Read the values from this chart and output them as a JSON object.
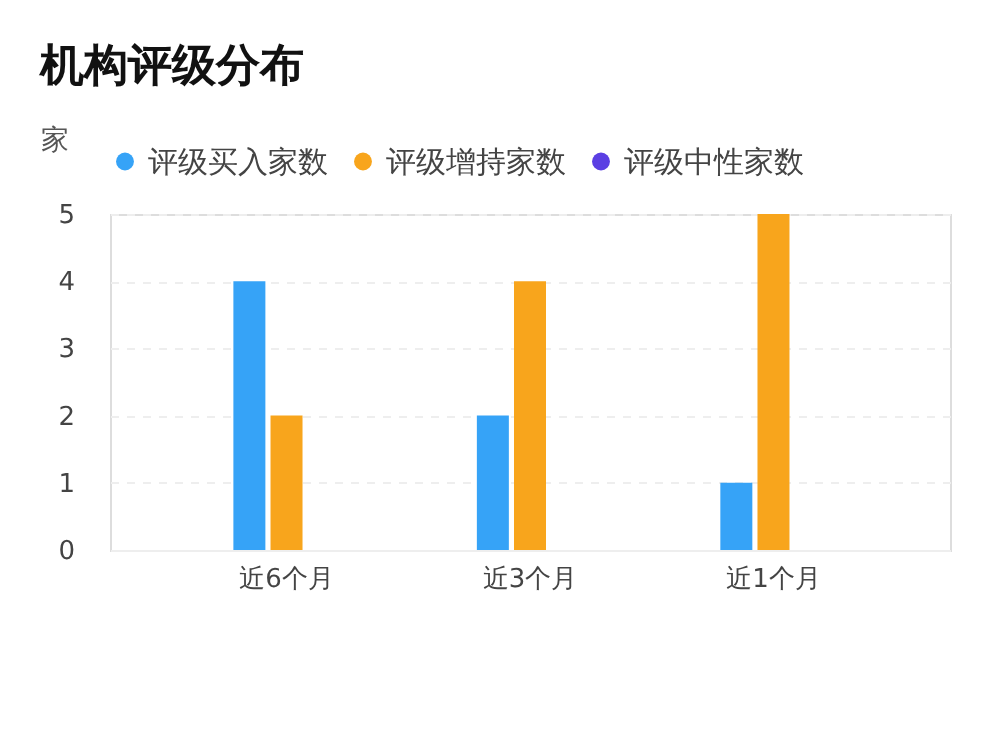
{
  "chart_data": {
    "type": "bar",
    "title": "机构评级分布",
    "ylabel": "家",
    "categories": [
      "近6个月",
      "近3个月",
      "近1个月"
    ],
    "series": [
      {
        "name": "评级买入家数",
        "color": "#36a3f7",
        "values": [
          4,
          2,
          1
        ]
      },
      {
        "name": "评级增持家数",
        "color": "#f8a51c",
        "values": [
          2,
          4,
          5
        ]
      },
      {
        "name": "评级中性家数",
        "color": "#5b3fe3",
        "values": [
          0,
          0,
          0
        ]
      }
    ],
    "ylim": [
      0,
      5
    ],
    "yticks": [
      0,
      1,
      2,
      3,
      4,
      5
    ],
    "grid": "y",
    "legend": "top"
  }
}
